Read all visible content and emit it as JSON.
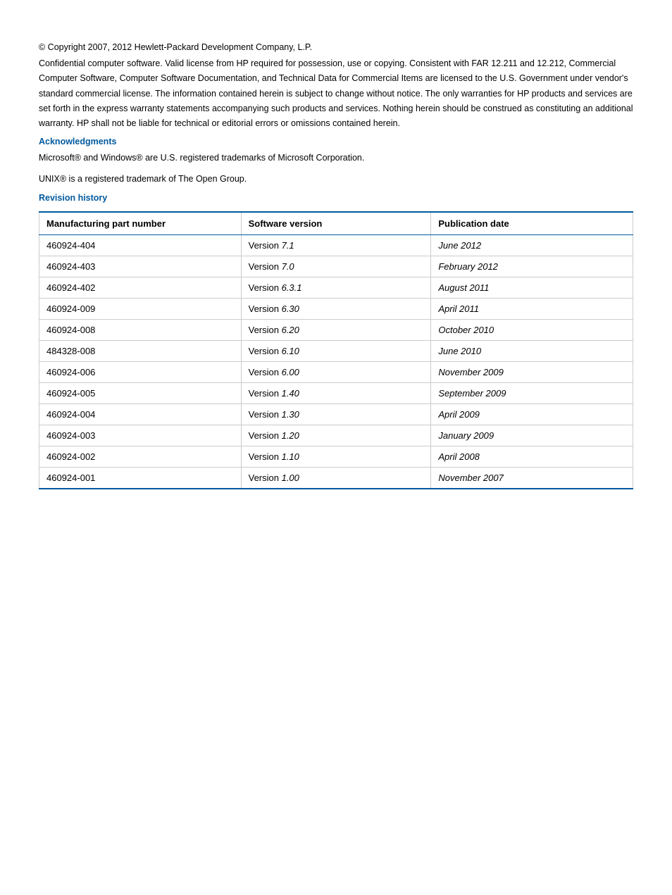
{
  "copyright": "© Copyright 2007, 2012 Hewlett-Packard Development Company, L.P.",
  "legal": "Confidential computer software. Valid license from HP required for possession, use or copying. Consistent with FAR 12.211 and 12.212, Commercial Computer Software, Computer Software Documentation, and Technical Data for Commercial Items are licensed to the U.S. Government under vendor's standard commercial license. The information contained herein is subject to change without notice. The only warranties for HP products and services are set forth in the express warranty statements accompanying such products and services. Nothing herein should be construed as constituting an additional warranty. HP shall not be liable for technical or editorial errors or omissions contained herein.",
  "acknowledgments": {
    "heading": "Acknowledgments",
    "lines": [
      "Microsoft® and Windows® are U.S. registered trademarks of Microsoft Corporation.",
      "UNIX® is a registered trademark of The Open Group."
    ]
  },
  "revision": {
    "heading": "Revision history",
    "columns": [
      "Manufacturing part number",
      "Software version",
      "Publication date"
    ],
    "version_prefix": "Version ",
    "rows": [
      {
        "part": "460924-404",
        "version": "7.1",
        "date": "June 2012"
      },
      {
        "part": "460924-403",
        "version": "7.0",
        "date": "February 2012"
      },
      {
        "part": "460924-402",
        "version": "6.3.1",
        "date": "August 2011"
      },
      {
        "part": "460924-009",
        "version": "6.30",
        "date": "April 2011"
      },
      {
        "part": "460924-008",
        "version": "6.20",
        "date": "October 2010"
      },
      {
        "part": "484328-008",
        "version": "6.10",
        "date": "June 2010"
      },
      {
        "part": "460924-006",
        "version": "6.00",
        "date": "November 2009"
      },
      {
        "part": "460924-005",
        "version": "1.40",
        "date": "September 2009"
      },
      {
        "part": "460924-004",
        "version": "1.30",
        "date": "April 2009"
      },
      {
        "part": "460924-003",
        "version": "1.20",
        "date": "January 2009"
      },
      {
        "part": "460924-002",
        "version": "1.10",
        "date": "April 2008"
      },
      {
        "part": "460924-001",
        "version": "1.00",
        "date": "November 2007"
      }
    ]
  },
  "colors": {
    "heading": "#005a9e",
    "table_border_accent": "#005a9e",
    "table_border_light": "#cccccc",
    "text": "#000000",
    "background": "#ffffff"
  }
}
